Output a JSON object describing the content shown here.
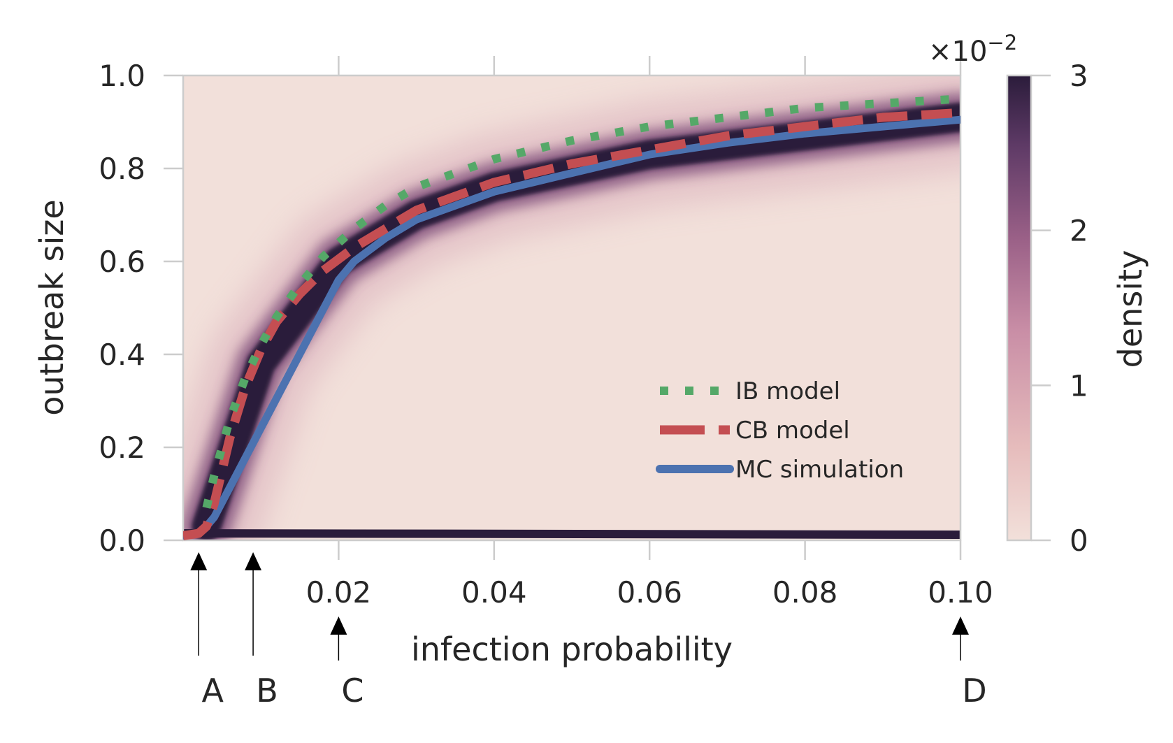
{
  "chart_data": {
    "type": "heatmap",
    "title": "",
    "xlabel": "infection probability",
    "ylabel": "outbreak size",
    "xlim": [
      0.0,
      0.1
    ],
    "ylim": [
      0.0,
      1.0
    ],
    "x_ticks": [
      0.02,
      0.04,
      0.06,
      0.08,
      0.1
    ],
    "x_tick_labels": [
      "0.02",
      "0.04",
      "0.06",
      "0.08",
      "0.10"
    ],
    "y_ticks": [
      0.0,
      0.2,
      0.4,
      0.6,
      0.8,
      1.0
    ],
    "y_tick_labels": [
      "0.0",
      "0.2",
      "0.4",
      "0.6",
      "0.8",
      "1.0"
    ],
    "grid": false,
    "colorbar": {
      "label": "density",
      "multiplier": "×10",
      "exponent": "−2",
      "range": [
        0,
        3
      ],
      "ticks": [
        0,
        1,
        2,
        3
      ],
      "tick_labels": [
        "0",
        "1",
        "2",
        "3"
      ],
      "color_low": "#f2e0da",
      "color_mid": "#b0708e",
      "color_high": "#2b1c3b"
    },
    "density_ridges": {
      "upper_band_center": [
        [
          0.003,
          0.03
        ],
        [
          0.01,
          0.38
        ],
        [
          0.02,
          0.6
        ],
        [
          0.03,
          0.7
        ],
        [
          0.04,
          0.76
        ],
        [
          0.06,
          0.83
        ],
        [
          0.08,
          0.87
        ],
        [
          0.1,
          0.91
        ]
      ],
      "lower_band_center": [
        [
          0.0,
          0.015
        ],
        [
          0.1,
          0.012
        ]
      ]
    },
    "series": [
      {
        "name": "IB model",
        "style": "dotted",
        "color": "#55a868",
        "x": [
          0.003,
          0.004,
          0.005,
          0.006,
          0.008,
          0.01,
          0.012,
          0.015,
          0.018,
          0.022,
          0.026,
          0.03,
          0.035,
          0.04,
          0.045,
          0.05,
          0.06,
          0.07,
          0.08,
          0.09,
          0.1
        ],
        "y": [
          0.07,
          0.14,
          0.2,
          0.26,
          0.35,
          0.42,
          0.48,
          0.55,
          0.61,
          0.67,
          0.72,
          0.76,
          0.79,
          0.82,
          0.84,
          0.86,
          0.89,
          0.91,
          0.93,
          0.94,
          0.95
        ]
      },
      {
        "name": "CB model",
        "style": "dashed",
        "color": "#c44e52",
        "x": [
          0.0,
          0.002,
          0.003,
          0.004,
          0.005,
          0.006,
          0.008,
          0.01,
          0.012,
          0.015,
          0.018,
          0.022,
          0.026,
          0.03,
          0.035,
          0.04,
          0.05,
          0.06,
          0.07,
          0.08,
          0.09,
          0.1
        ],
        "y": [
          0.01,
          0.015,
          0.03,
          0.08,
          0.15,
          0.22,
          0.33,
          0.41,
          0.47,
          0.53,
          0.58,
          0.63,
          0.67,
          0.71,
          0.74,
          0.77,
          0.81,
          0.84,
          0.87,
          0.89,
          0.91,
          0.92
        ]
      },
      {
        "name": "MC simulation",
        "style": "solid",
        "color": "#4c72b0",
        "x": [
          0.0,
          0.002,
          0.003,
          0.004,
          0.02,
          0.022,
          0.026,
          0.03,
          0.035,
          0.04,
          0.05,
          0.06,
          0.07,
          0.08,
          0.09,
          0.1
        ],
        "y": [
          0.01,
          0.015,
          0.03,
          0.05,
          0.56,
          0.6,
          0.65,
          0.69,
          0.72,
          0.75,
          0.79,
          0.83,
          0.855,
          0.875,
          0.89,
          0.905
        ]
      }
    ],
    "annotations": [
      {
        "label": "A",
        "x": 0.002
      },
      {
        "label": "B",
        "x": 0.009
      },
      {
        "label": "C",
        "x": 0.02
      },
      {
        "label": "D",
        "x": 0.1
      }
    ],
    "legend_position": "lower-right"
  }
}
